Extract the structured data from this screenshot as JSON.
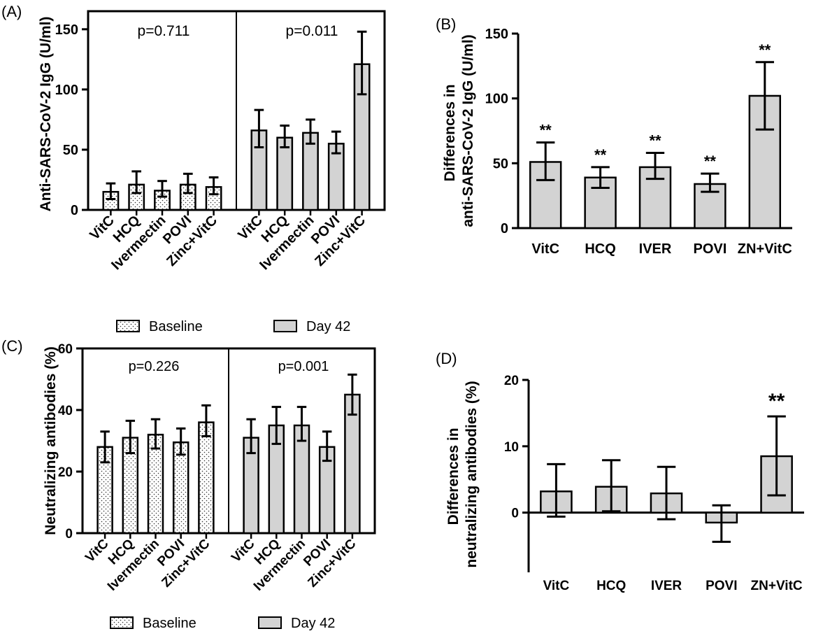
{
  "colors": {
    "bar": "#d3d3d3",
    "stroke": "#000000",
    "background": "#ffffff"
  },
  "chart_data": [
    {
      "panel": "(A)",
      "type": "bar",
      "ylabel": "Anti-SARS-CoV-2 IgG (U/ml)",
      "ylim": [
        0,
        165
      ],
      "yticks": [
        0,
        50,
        100,
        150
      ],
      "categories": [
        "VitC",
        "HCQ",
        "Ivermectin",
        "POVI",
        "Zinc+VitC"
      ],
      "groups": [
        {
          "name": "Baseline",
          "p_label": "p=0.711",
          "pattern": "dotted",
          "values": [
            15,
            21,
            16,
            21,
            19
          ],
          "err_low": [
            9,
            14,
            11,
            14,
            13
          ],
          "err_high": [
            22,
            32,
            24,
            30,
            27
          ]
        },
        {
          "name": "Day 42",
          "p_label": "p=0.011",
          "pattern": "solid",
          "values": [
            66,
            60,
            64,
            55,
            121
          ],
          "err_low": [
            52,
            52,
            55,
            47,
            96
          ],
          "err_high": [
            83,
            70,
            75,
            65,
            148
          ]
        }
      ],
      "legend": [
        "Baseline",
        "Day 42"
      ]
    },
    {
      "panel": "(B)",
      "type": "bar",
      "ylabel_lines": [
        "Differences in",
        "anti-SARS-CoV-2 IgG (U/ml)"
      ],
      "ylim": [
        0,
        150
      ],
      "yticks": [
        0,
        50,
        100,
        150
      ],
      "categories": [
        "VitC",
        "HCQ",
        "IVER",
        "POVI",
        "ZN+VitC"
      ],
      "values": [
        51,
        39,
        47,
        34,
        102
      ],
      "err_low": [
        37,
        31,
        38,
        28,
        76
      ],
      "err_high": [
        66,
        47,
        58,
        42,
        128
      ],
      "annotations": [
        "**",
        "**",
        "**",
        "**",
        "**"
      ]
    },
    {
      "panel": "(C)",
      "type": "bar",
      "ylabel": "Neutralizing antibodies (%)",
      "ylim": [
        0,
        60
      ],
      "yticks": [
        0,
        20,
        40,
        60
      ],
      "categories": [
        "VitC",
        "HCQ",
        "Ivermectin",
        "POVI",
        "Zinc+VitC"
      ],
      "groups": [
        {
          "name": "Baseline",
          "p_label": "p=0.226",
          "pattern": "dotted",
          "values": [
            28,
            31,
            32,
            29.5,
            36
          ],
          "err_low": [
            23,
            26,
            27.5,
            25.5,
            31.5
          ],
          "err_high": [
            33,
            36.5,
            37,
            34,
            41.5
          ]
        },
        {
          "name": "Day 42",
          "p_label": "p=0.001",
          "pattern": "solid",
          "values": [
            31,
            35,
            35,
            28,
            45
          ],
          "err_low": [
            26,
            29,
            30,
            23.5,
            38.5
          ],
          "err_high": [
            37,
            41,
            41,
            33,
            51.5
          ]
        }
      ],
      "legend": [
        "Baseline",
        "Day 42"
      ]
    },
    {
      "panel": "(D)",
      "type": "bar",
      "ylabel_lines": [
        "Differences in",
        "neutralizing antibodies (%)"
      ],
      "ylim": [
        -9,
        20
      ],
      "yticks": [
        0,
        10,
        20
      ],
      "categories": [
        "VitC",
        "HCQ",
        "IVER",
        "POVI",
        "ZN+VitC"
      ],
      "values": [
        3.2,
        3.9,
        2.9,
        -1.5,
        8.5
      ],
      "err_low": [
        -0.6,
        0.2,
        -1.0,
        -4.4,
        2.6
      ],
      "err_high": [
        7.3,
        7.9,
        6.9,
        1.1,
        14.5
      ],
      "annotations": [
        "",
        "",
        "",
        "",
        "**"
      ]
    }
  ]
}
